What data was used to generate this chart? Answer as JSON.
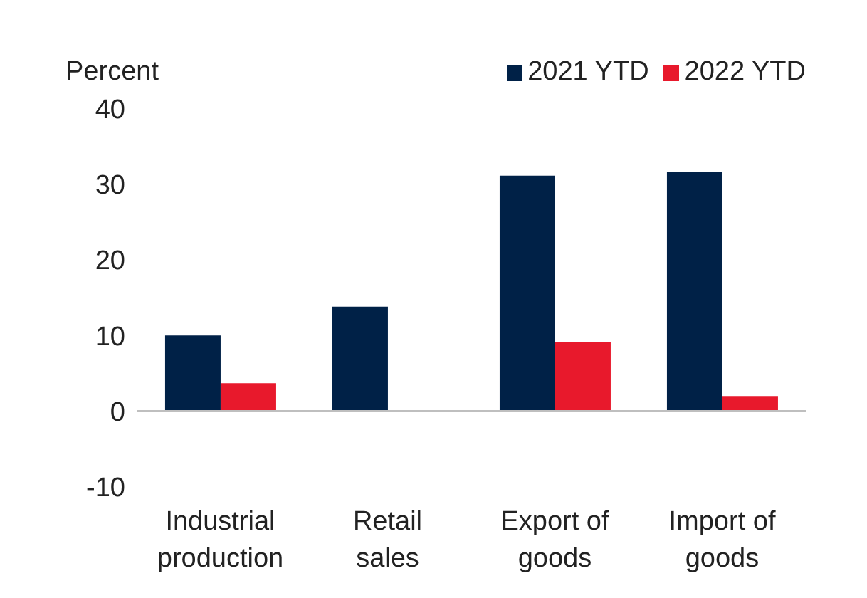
{
  "chart_data": {
    "type": "bar",
    "ylabel": "Percent",
    "categories": [
      "Industrial production",
      "Retail sales",
      "Export of goods",
      "Import of goods"
    ],
    "series": [
      {
        "name": "2021 YTD",
        "color": "#002147",
        "values": [
          10.0,
          13.8,
          31.1,
          31.6
        ]
      },
      {
        "name": "2022 YTD",
        "color": "#e8192c",
        "values": [
          3.7,
          null,
          9.1,
          2.0
        ]
      }
    ],
    "ylim": [
      -10,
      40
    ],
    "yticks": [
      -10,
      0,
      10,
      20,
      30,
      40
    ],
    "grid": false,
    "legend": "top right",
    "ref_lines": [
      {
        "axis": "y",
        "value": 0,
        "color": "#bfbfbf"
      }
    ]
  }
}
